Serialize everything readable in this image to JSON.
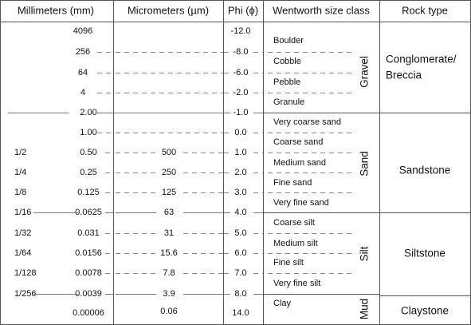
{
  "header": [
    "Millimeters (mm)",
    "Micrometers (µm)",
    "Phi (ϕ)",
    "Wentworth size class",
    "Rock type"
  ],
  "rows": [
    {
      "mm": "4096",
      "phi": "-12.0"
    },
    {
      "mm": "256",
      "phi": "-8.0"
    },
    {
      "mm": "64",
      "phi": "-6.0"
    },
    {
      "mm": "4",
      "phi": "-2.0"
    },
    {
      "mm": "2.00",
      "phi": "-1.0"
    },
    {
      "mm": "1.00",
      "phi": "0.0"
    },
    {
      "fraction": "1/2",
      "mm": "0.50",
      "um": "500",
      "phi": "1.0"
    },
    {
      "fraction": "1/4",
      "mm": "0.25",
      "um": "250",
      "phi": "2.0"
    },
    {
      "fraction": "1/8",
      "mm": "0.125",
      "um": "125",
      "phi": "3.0"
    },
    {
      "fraction": "1/16",
      "mm": "0.0625",
      "um": "63",
      "phi": "4.0"
    },
    {
      "fraction": "1/32",
      "mm": "0.031",
      "um": "31",
      "phi": "5.0"
    },
    {
      "fraction": "1/64",
      "mm": "0.0156",
      "um": "15.6",
      "phi": "6.0"
    },
    {
      "fraction": "1/128",
      "mm": "0.0078",
      "um": "7.8",
      "phi": "7.0"
    },
    {
      "fraction": "1/256",
      "mm": "0.0039",
      "um": "3.9",
      "phi": "8.0"
    },
    {
      "mm": "0.00006",
      "um": "0.06",
      "phi": "14.0"
    }
  ],
  "classes": [
    "Boulder",
    "Cobble",
    "Pebble",
    "Granule",
    "Very coarse sand",
    "Coarse sand",
    "Medium sand",
    "Fine sand",
    "Very fine sand",
    "Coarse silt",
    "Medium silt",
    "Fine silt",
    "Very fine silt",
    "Clay"
  ],
  "groups": [
    "Gravel",
    "Sand",
    "Silt",
    "Mud"
  ],
  "rocks": [
    {
      "lines": [
        "Conglomerate/",
        "Breccia"
      ]
    },
    {
      "lines": [
        "Sandstone"
      ]
    },
    {
      "lines": [
        "Siltstone"
      ]
    },
    {
      "lines": [
        "Claystone"
      ]
    }
  ]
}
